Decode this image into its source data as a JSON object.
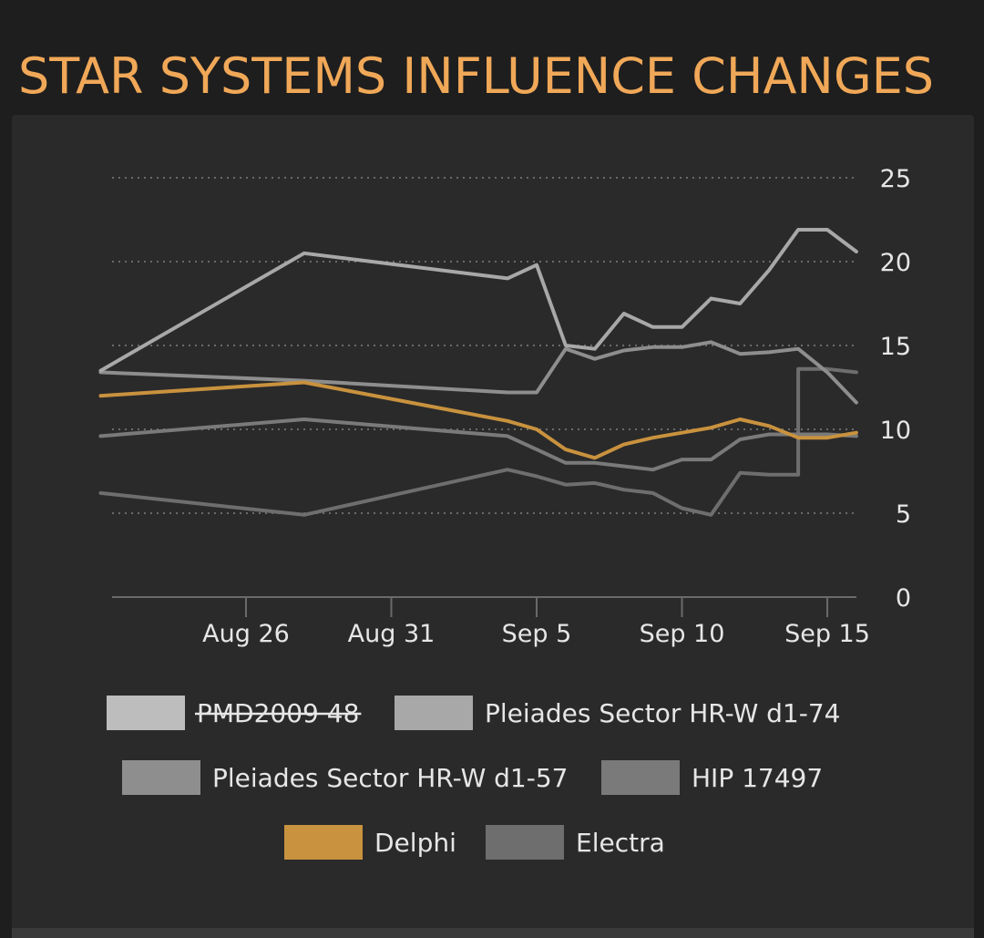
{
  "page_title": "STAR SYSTEMS INFLUENCE CHANGES",
  "chart_data": {
    "type": "line",
    "y_axis": {
      "range": [
        0,
        25
      ],
      "ticks": [
        "0",
        "5",
        "10",
        "15",
        "20",
        "25"
      ],
      "position": "right",
      "grid": "dotted"
    },
    "x_axis": {
      "range": [
        "2023-08-21",
        "2023-09-16"
      ],
      "ticks": [
        {
          "date": "2023-08-26",
          "label": "Aug 26"
        },
        {
          "date": "2023-08-31",
          "label": "Aug 31"
        },
        {
          "date": "2023-09-05",
          "label": "Sep 5"
        },
        {
          "date": "2023-09-10",
          "label": "Sep 10"
        },
        {
          "date": "2023-09-15",
          "label": "Sep 15"
        }
      ]
    },
    "legend_position": "bottom",
    "series": [
      {
        "name": "PMD2009 48",
        "hidden": true,
        "color": "#bdbdbd",
        "points": []
      },
      {
        "name": "Pleiades Sector HR-W d1-74",
        "color": "#a8a8a8",
        "points": [
          [
            "2023-08-21",
            13.5
          ],
          [
            "2023-08-28",
            20.5
          ],
          [
            "2023-09-04",
            19.0
          ],
          [
            "2023-09-05",
            19.8
          ],
          [
            "2023-09-06",
            15.0
          ],
          [
            "2023-09-07",
            14.8
          ],
          [
            "2023-09-08",
            16.9
          ],
          [
            "2023-09-09",
            16.1
          ],
          [
            "2023-09-10",
            16.1
          ],
          [
            "2023-09-11",
            17.8
          ],
          [
            "2023-09-12",
            17.5
          ],
          [
            "2023-09-13",
            19.5
          ],
          [
            "2023-09-14",
            21.9
          ],
          [
            "2023-09-15",
            21.9
          ],
          [
            "2023-09-16",
            20.6
          ]
        ]
      },
      {
        "name": "Pleiades Sector HR-W d1-57",
        "color": "#8e8e8e",
        "points": [
          [
            "2023-08-21",
            13.4
          ],
          [
            "2023-08-28",
            12.9
          ],
          [
            "2023-09-04",
            12.2
          ],
          [
            "2023-09-05",
            12.2
          ],
          [
            "2023-09-06",
            14.8
          ],
          [
            "2023-09-07",
            14.2
          ],
          [
            "2023-09-08",
            14.7
          ],
          [
            "2023-09-09",
            14.9
          ],
          [
            "2023-09-10",
            14.9
          ],
          [
            "2023-09-11",
            15.2
          ],
          [
            "2023-09-12",
            14.5
          ],
          [
            "2023-09-13",
            14.6
          ],
          [
            "2023-09-14",
            14.8
          ],
          [
            "2023-09-15",
            13.4
          ],
          [
            "2023-09-16",
            11.6
          ]
        ]
      },
      {
        "name": "HIP 17497",
        "color": "#7a7a7a",
        "points": [
          [
            "2023-08-21",
            9.6
          ],
          [
            "2023-08-28",
            10.6
          ],
          [
            "2023-09-04",
            9.6
          ],
          [
            "2023-09-05",
            8.8
          ],
          [
            "2023-09-06",
            8.0
          ],
          [
            "2023-09-07",
            8.0
          ],
          [
            "2023-09-08",
            7.8
          ],
          [
            "2023-09-09",
            7.6
          ],
          [
            "2023-09-10",
            8.2
          ],
          [
            "2023-09-11",
            8.2
          ],
          [
            "2023-09-12",
            9.4
          ],
          [
            "2023-09-13",
            9.7
          ],
          [
            "2023-09-14",
            9.7
          ],
          [
            "2023-09-15",
            9.7
          ],
          [
            "2023-09-16",
            9.6
          ]
        ]
      },
      {
        "name": "Delphi",
        "color": "#c9923e",
        "points": [
          [
            "2023-08-21",
            12.0
          ],
          [
            "2023-08-28",
            12.8
          ],
          [
            "2023-09-04",
            10.5
          ],
          [
            "2023-09-05",
            10.0
          ],
          [
            "2023-09-06",
            8.8
          ],
          [
            "2023-09-07",
            8.3
          ],
          [
            "2023-09-08",
            9.1
          ],
          [
            "2023-09-09",
            9.5
          ],
          [
            "2023-09-10",
            9.8
          ],
          [
            "2023-09-11",
            10.1
          ],
          [
            "2023-09-12",
            10.6
          ],
          [
            "2023-09-13",
            10.2
          ],
          [
            "2023-09-14",
            9.5
          ],
          [
            "2023-09-15",
            9.5
          ],
          [
            "2023-09-16",
            9.8
          ]
        ]
      },
      {
        "name": "Electra",
        "color": "#6e6e6e",
        "points": [
          [
            "2023-08-21",
            6.2
          ],
          [
            "2023-08-28",
            4.9
          ],
          [
            "2023-09-04",
            7.6
          ],
          [
            "2023-09-05",
            7.2
          ],
          [
            "2023-09-06",
            6.7
          ],
          [
            "2023-09-07",
            6.8
          ],
          [
            "2023-09-08",
            6.4
          ],
          [
            "2023-09-09",
            6.2
          ],
          [
            "2023-09-10",
            5.3
          ],
          [
            "2023-09-11",
            4.9
          ],
          [
            "2023-09-12",
            7.4
          ],
          [
            "2023-09-13",
            7.3
          ],
          [
            "2023-09-14",
            7.3
          ],
          [
            "2023-09-14",
            13.6
          ],
          [
            "2023-09-15",
            13.6
          ],
          [
            "2023-09-16",
            13.4
          ]
        ]
      }
    ]
  }
}
